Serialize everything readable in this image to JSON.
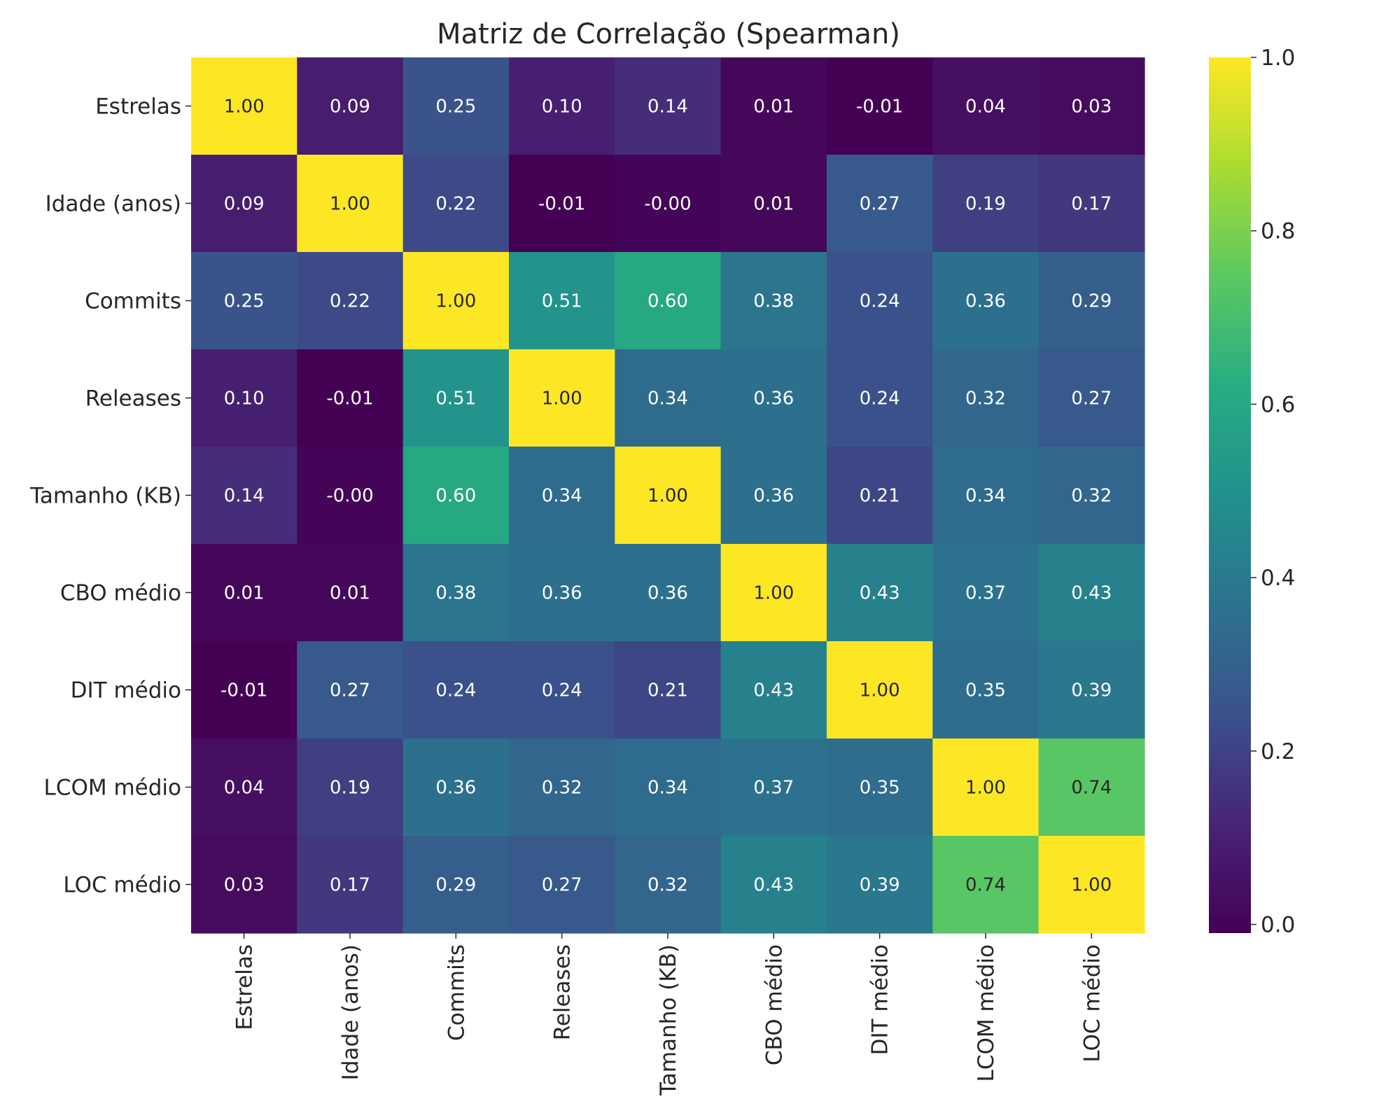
{
  "chart_data": {
    "type": "heatmap",
    "title": "Matriz de Correlação (Spearman)",
    "xlabel": "",
    "ylabel": "",
    "row_labels": [
      "Estrelas",
      "Idade (anos)",
      "Commits",
      "Releases",
      "Tamanho (KB)",
      "CBO médio",
      "DIT médio",
      "LCOM médio",
      "LOC médio"
    ],
    "col_labels": [
      "Estrelas",
      "Idade (anos)",
      "Commits",
      "Releases",
      "Tamanho (KB)",
      "CBO médio",
      "DIT médio",
      "LCOM médio",
      "LOC médio"
    ],
    "values": [
      [
        1.0,
        0.09,
        0.25,
        0.1,
        0.14,
        0.01,
        -0.01,
        0.04,
        0.03
      ],
      [
        0.09,
        1.0,
        0.22,
        -0.01,
        -0.0,
        0.01,
        0.27,
        0.19,
        0.17
      ],
      [
        0.25,
        0.22,
        1.0,
        0.51,
        0.6,
        0.38,
        0.24,
        0.36,
        0.29
      ],
      [
        0.1,
        -0.01,
        0.51,
        1.0,
        0.34,
        0.36,
        0.24,
        0.32,
        0.27
      ],
      [
        0.14,
        -0.0,
        0.6,
        0.34,
        1.0,
        0.36,
        0.21,
        0.34,
        0.32
      ],
      [
        0.01,
        0.01,
        0.38,
        0.36,
        0.36,
        1.0,
        0.43,
        0.37,
        0.43
      ],
      [
        -0.01,
        0.27,
        0.24,
        0.24,
        0.21,
        0.43,
        1.0,
        0.35,
        0.39
      ],
      [
        0.04,
        0.19,
        0.36,
        0.32,
        0.34,
        0.37,
        0.35,
        1.0,
        0.74
      ],
      [
        0.03,
        0.17,
        0.29,
        0.27,
        0.32,
        0.43,
        0.39,
        0.74,
        1.0
      ]
    ],
    "annotations": [
      [
        "1.00",
        "0.09",
        "0.25",
        "0.10",
        "0.14",
        "0.01",
        "-0.01",
        "0.04",
        "0.03"
      ],
      [
        "0.09",
        "1.00",
        "0.22",
        "-0.01",
        "-0.00",
        "0.01",
        "0.27",
        "0.19",
        "0.17"
      ],
      [
        "0.25",
        "0.22",
        "1.00",
        "0.51",
        "0.60",
        "0.38",
        "0.24",
        "0.36",
        "0.29"
      ],
      [
        "0.10",
        "-0.01",
        "0.51",
        "1.00",
        "0.34",
        "0.36",
        "0.24",
        "0.32",
        "0.27"
      ],
      [
        "0.14",
        "-0.00",
        "0.60",
        "0.34",
        "1.00",
        "0.36",
        "0.21",
        "0.34",
        "0.32"
      ],
      [
        "0.01",
        "0.01",
        "0.38",
        "0.36",
        "0.36",
        "1.00",
        "0.43",
        "0.37",
        "0.43"
      ],
      [
        "-0.01",
        "0.27",
        "0.24",
        "0.24",
        "0.21",
        "0.43",
        "1.00",
        "0.35",
        "0.39"
      ],
      [
        "0.04",
        "0.19",
        "0.36",
        "0.32",
        "0.34",
        "0.37",
        "0.35",
        "1.00",
        "0.74"
      ],
      [
        "0.03",
        "0.17",
        "0.29",
        "0.27",
        "0.32",
        "0.43",
        "0.39",
        "0.74",
        "1.00"
      ]
    ],
    "colormap": "viridis",
    "colorbar": {
      "range": [
        -0.01,
        1.0
      ],
      "ticks": [
        0.0,
        0.2,
        0.4,
        0.6,
        0.8,
        1.0
      ],
      "tick_labels": [
        "0.0",
        "0.2",
        "0.4",
        "0.6",
        "0.8",
        "1.0"
      ],
      "position": "right"
    },
    "grid": false,
    "legend": "none"
  }
}
